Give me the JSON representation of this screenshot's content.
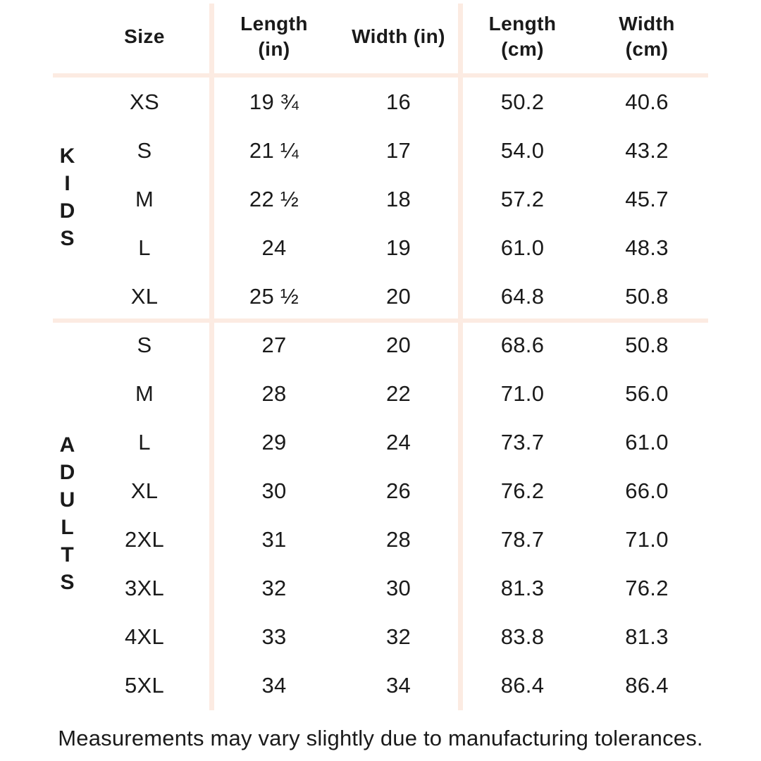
{
  "colors": {
    "divider": "#fcebe2",
    "text": "#1a1a1a",
    "background": "#ffffff"
  },
  "table": {
    "headers": {
      "size": "Size",
      "length_in": "Length\n(in)",
      "width_in": "Width (in)",
      "length_cm": "Length\n(cm)",
      "width_cm": "Width\n(cm)"
    },
    "sections": [
      {
        "group": "KIDS",
        "rows": [
          {
            "size": "XS",
            "length_in": "19 ¾",
            "width_in": "16",
            "length_cm": "50.2",
            "width_cm": "40.6"
          },
          {
            "size": "S",
            "length_in": "21 ¼",
            "width_in": "17",
            "length_cm": "54.0",
            "width_cm": "43.2"
          },
          {
            "size": "M",
            "length_in": "22 ½",
            "width_in": "18",
            "length_cm": "57.2",
            "width_cm": "45.7"
          },
          {
            "size": "L",
            "length_in": "24",
            "width_in": "19",
            "length_cm": "61.0",
            "width_cm": "48.3"
          },
          {
            "size": "XL",
            "length_in": "25 ½",
            "width_in": "20",
            "length_cm": "64.8",
            "width_cm": "50.8"
          }
        ]
      },
      {
        "group": "ADULTS",
        "rows": [
          {
            "size": "S",
            "length_in": "27",
            "width_in": "20",
            "length_cm": "68.6",
            "width_cm": "50.8"
          },
          {
            "size": "M",
            "length_in": "28",
            "width_in": "22",
            "length_cm": "71.0",
            "width_cm": "56.0"
          },
          {
            "size": "L",
            "length_in": "29",
            "width_in": "24",
            "length_cm": "73.7",
            "width_cm": "61.0"
          },
          {
            "size": "XL",
            "length_in": "30",
            "width_in": "26",
            "length_cm": "76.2",
            "width_cm": "66.0"
          },
          {
            "size": "2XL",
            "length_in": "31",
            "width_in": "28",
            "length_cm": "78.7",
            "width_cm": "71.0"
          },
          {
            "size": "3XL",
            "length_in": "32",
            "width_in": "30",
            "length_cm": "81.3",
            "width_cm": "76.2"
          },
          {
            "size": "4XL",
            "length_in": "33",
            "width_in": "32",
            "length_cm": "83.8",
            "width_cm": "81.3"
          },
          {
            "size": "5XL",
            "length_in": "34",
            "width_in": "34",
            "length_cm": "86.4",
            "width_cm": "86.4"
          }
        ]
      }
    ]
  },
  "footer": {
    "note": "Measurements may vary slightly due to manufacturing tolerances."
  }
}
